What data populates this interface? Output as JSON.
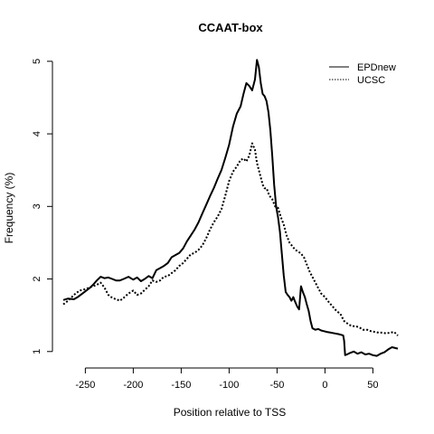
{
  "chart_data": {
    "type": "line",
    "title": "CCAAT-box",
    "xlabel": "Position relative to TSS",
    "ylabel": "Frequency (%)",
    "xlim": [
      -273,
      76
    ],
    "ylim": [
      0.96,
      5.06
    ],
    "xticks": [
      -250,
      -200,
      -150,
      -100,
      -50,
      0,
      50
    ],
    "yticks": [
      1,
      2,
      3,
      4,
      5
    ],
    "legend_position": "top-right",
    "grid": false,
    "series": [
      {
        "name": "EPDnew",
        "line_style": "solid",
        "color": "#000000",
        "x": [
          -273,
          -268,
          -262,
          -258,
          -254,
          -250,
          -246,
          -242,
          -238,
          -234,
          -230,
          -226,
          -222,
          -218,
          -214,
          -210,
          -205,
          -200,
          -196,
          -192,
          -188,
          -184,
          -180,
          -176,
          -172,
          -168,
          -164,
          -160,
          -156,
          -152,
          -148,
          -144,
          -140,
          -136,
          -132,
          -128,
          -124,
          -120,
          -116,
          -112,
          -108,
          -104,
          -100,
          -96,
          -92,
          -88,
          -85,
          -82,
          -79,
          -76,
          -73,
          -71,
          -69,
          -67,
          -65,
          -63,
          -61,
          -59,
          -57,
          -55,
          -53,
          -51,
          -49,
          -47,
          -45,
          -43,
          -41,
          -39,
          -37,
          -35,
          -33,
          -31,
          -29,
          -27,
          -25,
          -23,
          -21,
          -19,
          -17,
          -15,
          -13,
          -10,
          -7,
          -4,
          -1,
          2,
          6,
          10,
          14,
          17,
          19,
          20,
          21,
          23,
          26,
          30,
          34,
          38,
          42,
          46,
          50,
          54,
          58,
          62,
          66,
          70,
          76
        ],
        "values": [
          1.71,
          1.73,
          1.72,
          1.75,
          1.79,
          1.83,
          1.87,
          1.92,
          1.98,
          2.03,
          2.01,
          2.02,
          2.0,
          1.98,
          1.98,
          2.0,
          2.03,
          1.99,
          2.02,
          1.97,
          2.0,
          2.04,
          2.01,
          2.12,
          2.15,
          2.18,
          2.22,
          2.3,
          2.33,
          2.36,
          2.42,
          2.52,
          2.6,
          2.68,
          2.78,
          2.9,
          3.02,
          3.14,
          3.25,
          3.38,
          3.5,
          3.67,
          3.85,
          4.1,
          4.28,
          4.38,
          4.55,
          4.7,
          4.66,
          4.6,
          4.75,
          5.02,
          4.92,
          4.7,
          4.55,
          4.52,
          4.45,
          4.3,
          4.05,
          3.7,
          3.3,
          3.0,
          2.85,
          2.65,
          2.35,
          2.05,
          1.82,
          1.78,
          1.75,
          1.7,
          1.75,
          1.68,
          1.62,
          1.58,
          1.9,
          1.82,
          1.75,
          1.65,
          1.56,
          1.42,
          1.32,
          1.3,
          1.31,
          1.29,
          1.28,
          1.27,
          1.26,
          1.25,
          1.24,
          1.23,
          1.22,
          1.15,
          0.95,
          0.96,
          0.98,
          1.0,
          0.97,
          0.99,
          0.96,
          0.97,
          0.95,
          0.94,
          0.97,
          0.99,
          1.03,
          1.06,
          1.04
        ]
      },
      {
        "name": "UCSC",
        "line_style": "dotted",
        "color": "#000000",
        "x": [
          -273,
          -268,
          -262,
          -256,
          -250,
          -246,
          -242,
          -238,
          -234,
          -230,
          -226,
          -222,
          -218,
          -214,
          -210,
          -205,
          -200,
          -196,
          -192,
          -188,
          -184,
          -180,
          -176,
          -172,
          -168,
          -164,
          -160,
          -156,
          -152,
          -148,
          -144,
          -140,
          -136,
          -132,
          -128,
          -124,
          -120,
          -116,
          -112,
          -108,
          -104,
          -100,
          -96,
          -92,
          -88,
          -85,
          -82,
          -79,
          -76,
          -73,
          -71,
          -69,
          -67,
          -65,
          -63,
          -61,
          -58,
          -55,
          -52,
          -49,
          -46,
          -43,
          -40,
          -37,
          -34,
          -31,
          -28,
          -25,
          -22,
          -19,
          -16,
          -12,
          -8,
          -4,
          0,
          4,
          8,
          12,
          16,
          20,
          24,
          28,
          32,
          36,
          40,
          44,
          48,
          52,
          56,
          60,
          64,
          68,
          72,
          76
        ],
        "values": [
          1.65,
          1.7,
          1.78,
          1.84,
          1.86,
          1.88,
          1.9,
          1.92,
          1.95,
          1.88,
          1.78,
          1.74,
          1.72,
          1.7,
          1.74,
          1.8,
          1.84,
          1.78,
          1.8,
          1.85,
          1.9,
          1.98,
          1.96,
          1.98,
          2.03,
          2.04,
          2.08,
          2.12,
          2.18,
          2.22,
          2.28,
          2.34,
          2.36,
          2.4,
          2.46,
          2.56,
          2.68,
          2.78,
          2.86,
          2.96,
          3.15,
          3.35,
          3.48,
          3.55,
          3.64,
          3.66,
          3.62,
          3.7,
          3.87,
          3.78,
          3.6,
          3.5,
          3.4,
          3.3,
          3.25,
          3.25,
          3.15,
          3.1,
          3.0,
          2.98,
          2.85,
          2.75,
          2.6,
          2.5,
          2.45,
          2.4,
          2.38,
          2.35,
          2.3,
          2.2,
          2.1,
          2.0,
          1.9,
          1.8,
          1.75,
          1.68,
          1.62,
          1.56,
          1.52,
          1.42,
          1.38,
          1.35,
          1.35,
          1.33,
          1.3,
          1.3,
          1.28,
          1.27,
          1.26,
          1.26,
          1.25,
          1.26,
          1.27,
          1.22
        ]
      }
    ]
  }
}
